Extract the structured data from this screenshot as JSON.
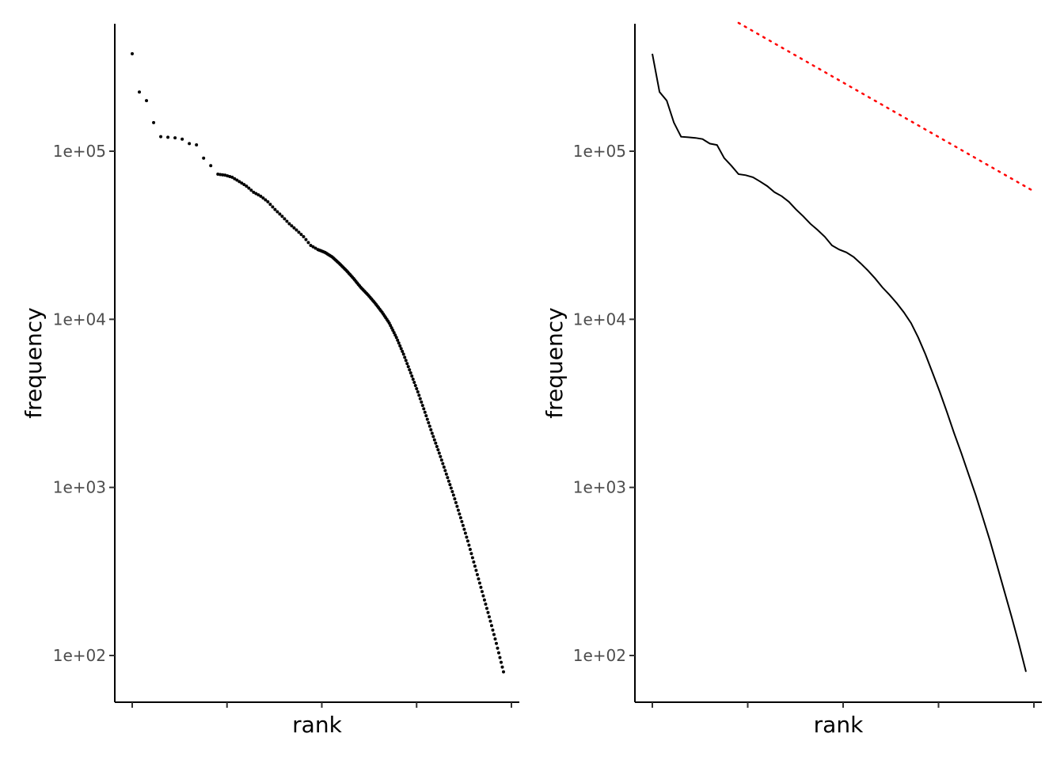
{
  "chart_data": [
    {
      "type": "scatter",
      "xlabel": "rank",
      "ylabel": "frequency",
      "y_scale": "log10",
      "ylim": [
        55,
        600000
      ],
      "y_ticks": [
        {
          "value": 100,
          "label": "1e+02"
        },
        {
          "value": 1000,
          "label": "1e+03"
        },
        {
          "value": 10000,
          "label": "1e+04"
        },
        {
          "value": 100000,
          "label": "1e+05"
        }
      ],
      "x_tick_labels_shown": false,
      "grid": false,
      "legend": "none",
      "series": [
        {
          "color": "#000000",
          "points": [
            [
              1,
              380000
            ],
            [
              2,
              225000
            ],
            [
              3,
              200000
            ],
            [
              4,
              148000
            ],
            [
              5,
              122000
            ],
            [
              6,
              121000
            ],
            [
              7,
              120000
            ],
            [
              8,
              118000
            ],
            [
              9,
              111000
            ],
            [
              10,
              109000
            ],
            [
              11,
              91000
            ],
            [
              12,
              82000
            ],
            [
              13,
              73000
            ],
            [
              14,
              72000
            ],
            [
              15,
              70000
            ],
            [
              16,
              66000
            ],
            [
              17,
              62000
            ],
            [
              18,
              57000
            ],
            [
              19,
              54000
            ],
            [
              20,
              50000
            ],
            [
              21,
              45000
            ],
            [
              22,
              41000
            ],
            [
              23,
              37000
            ],
            [
              24,
              34000
            ],
            [
              25,
              31000
            ],
            [
              26,
              27500
            ],
            [
              27,
              26000
            ],
            [
              28,
              25000
            ],
            [
              29,
              23500
            ],
            [
              30,
              21500
            ],
            [
              31,
              19500
            ],
            [
              32,
              17500
            ],
            [
              33,
              15500
            ],
            [
              34,
              14000
            ],
            [
              35,
              12500
            ],
            [
              36,
              11000
            ],
            [
              37,
              9500
            ],
            [
              38,
              7800
            ],
            [
              39,
              6200
            ],
            [
              40,
              4800
            ],
            [
              41,
              3700
            ],
            [
              42,
              2800
            ],
            [
              43,
              2100
            ],
            [
              44,
              1600
            ],
            [
              45,
              1200
            ],
            [
              46,
              900
            ],
            [
              47,
              660
            ],
            [
              48,
              480
            ],
            [
              49,
              340
            ],
            [
              50,
              240
            ],
            [
              51,
              170
            ],
            [
              52,
              118
            ],
            [
              53,
              80
            ]
          ]
        }
      ]
    },
    {
      "type": "line",
      "xlabel": "rank",
      "ylabel": "frequency",
      "y_scale": "log10",
      "ylim": [
        55,
        600000
      ],
      "y_ticks": [
        {
          "value": 100,
          "label": "1e+02"
        },
        {
          "value": 1000,
          "label": "1e+03"
        },
        {
          "value": 10000,
          "label": "1e+04"
        },
        {
          "value": 100000,
          "label": "1e+05"
        }
      ],
      "x_tick_labels_shown": false,
      "grid": false,
      "legend": "none",
      "series": [
        {
          "style": "solid",
          "color": "#000000",
          "points": [
            [
              1,
              380000
            ],
            [
              2,
              225000
            ],
            [
              3,
              200000
            ],
            [
              4,
              148000
            ],
            [
              5,
              122000
            ],
            [
              6,
              121000
            ],
            [
              7,
              120000
            ],
            [
              8,
              118000
            ],
            [
              9,
              111000
            ],
            [
              10,
              109000
            ],
            [
              11,
              91000
            ],
            [
              12,
              82000
            ],
            [
              13,
              73000
            ],
            [
              14,
              72000
            ],
            [
              15,
              70000
            ],
            [
              16,
              66000
            ],
            [
              17,
              62000
            ],
            [
              18,
              57000
            ],
            [
              19,
              54000
            ],
            [
              20,
              50000
            ],
            [
              21,
              45000
            ],
            [
              22,
              41000
            ],
            [
              23,
              37000
            ],
            [
              24,
              34000
            ],
            [
              25,
              31000
            ],
            [
              26,
              27500
            ],
            [
              27,
              26000
            ],
            [
              28,
              25000
            ],
            [
              29,
              23500
            ],
            [
              30,
              21500
            ],
            [
              31,
              19500
            ],
            [
              32,
              17500
            ],
            [
              33,
              15500
            ],
            [
              34,
              14000
            ],
            [
              35,
              12500
            ],
            [
              36,
              11000
            ],
            [
              37,
              9500
            ],
            [
              38,
              7800
            ],
            [
              39,
              6200
            ],
            [
              40,
              4800
            ],
            [
              41,
              3700
            ],
            [
              42,
              2800
            ],
            [
              43,
              2100
            ],
            [
              44,
              1600
            ],
            [
              45,
              1200
            ],
            [
              46,
              900
            ],
            [
              47,
              660
            ],
            [
              48,
              480
            ],
            [
              49,
              340
            ],
            [
              50,
              240
            ],
            [
              51,
              170
            ],
            [
              52,
              118
            ],
            [
              53,
              80
            ]
          ]
        },
        {
          "style": "dotted",
          "color": "#ff0000",
          "points": [
            [
              13,
              580000
            ],
            [
              54,
              58000
            ]
          ]
        }
      ]
    }
  ]
}
